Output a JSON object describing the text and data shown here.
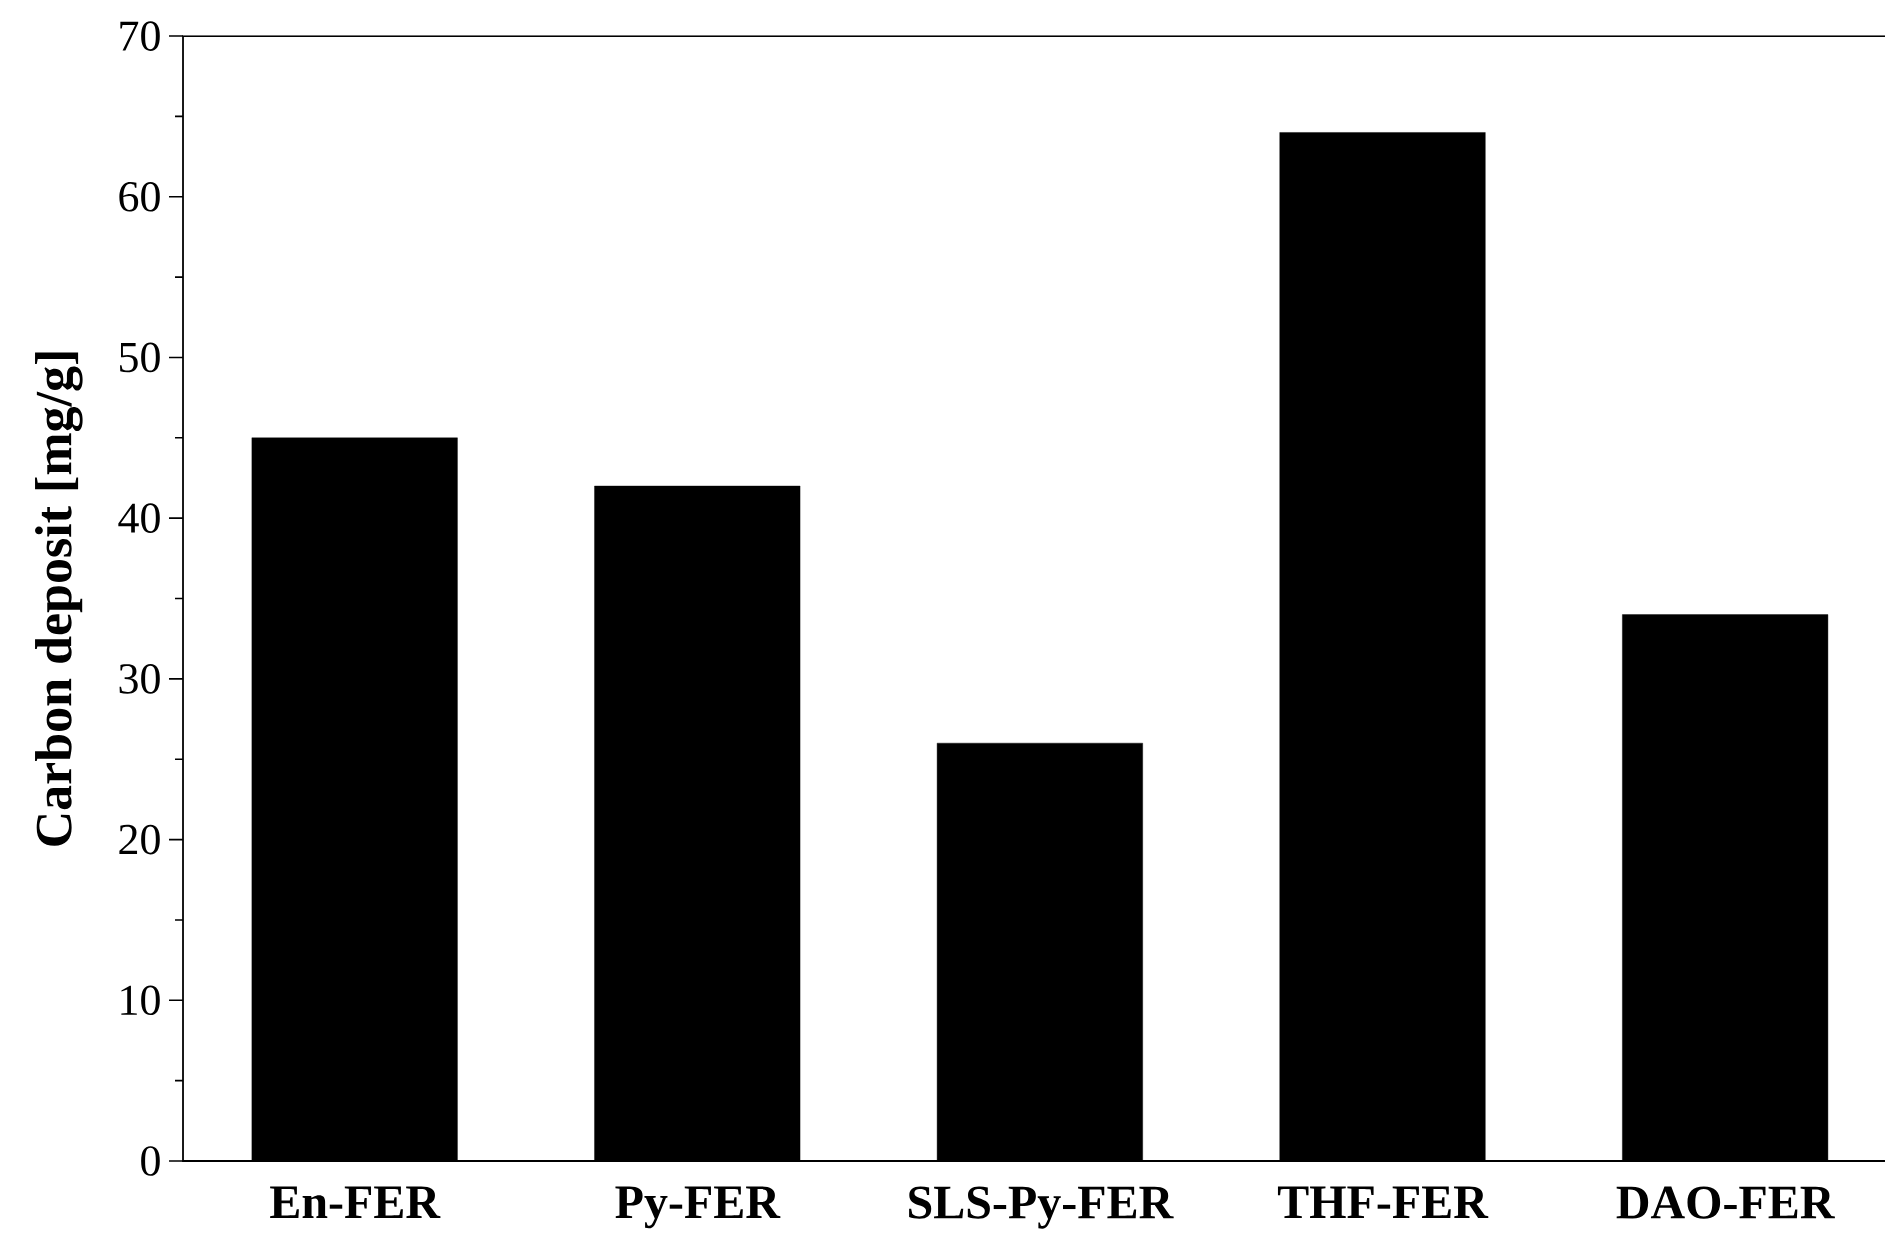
{
  "chart_data": {
    "type": "bar",
    "ylabel": "Carbon deposit [mg/g]",
    "categories": [
      "En-FER",
      "Py-FER",
      "SLS-Py-FER",
      "THF-FER",
      "DAO-FER"
    ],
    "values": [
      45,
      42,
      26,
      64,
      34
    ],
    "color": "#000000",
    "ylim": [
      0,
      70
    ],
    "yticks": [
      0,
      10,
      20,
      30,
      40,
      50,
      60,
      70
    ]
  }
}
